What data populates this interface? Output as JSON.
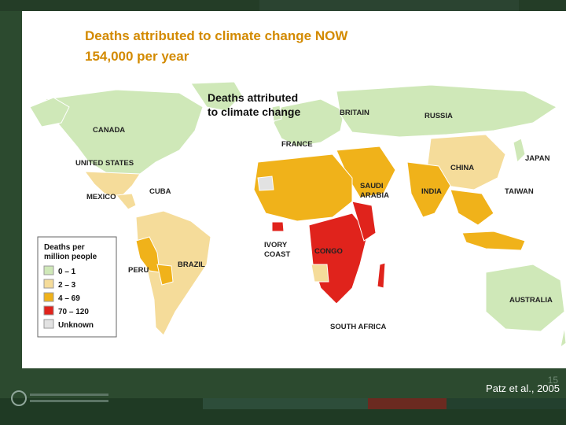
{
  "slide": {
    "title_line1": "Deaths attributed to climate change NOW",
    "title_line2": "154,000 per year",
    "citation": "Patz et al., 2005",
    "page_number": "15"
  },
  "map": {
    "title_line1": "Deaths attributed",
    "title_line2": "to climate change",
    "labels": {
      "canada": "CANADA",
      "united_states": "UNITED STATES",
      "mexico": "MEXICO",
      "cuba": "CUBA",
      "peru": "PERU",
      "brazil": "BRAZIL",
      "britain": "BRITAIN",
      "france": "FRANCE",
      "russia": "RUSSIA",
      "china": "CHINA",
      "japan": "JAPAN",
      "taiwan": "TAIWAN",
      "india": "INDIA",
      "saudi_arabia_1": "SAUDI",
      "saudi_arabia_2": "ARABIA",
      "ivory_coast_1": "IVORY",
      "ivory_coast_2": "COAST",
      "congo": "CONGO",
      "south_africa": "SOUTH AFRICA",
      "australia": "AUSTRALIA"
    },
    "legend": {
      "title_line1": "Deaths per",
      "title_line2": "million people",
      "items": [
        {
          "label": "0 – 1",
          "color": "#cfe8b8"
        },
        {
          "label": "2 – 3",
          "color": "#f5dc9a"
        },
        {
          "label": "4 – 69",
          "color": "#f0b21a"
        },
        {
          "label": "70 – 120",
          "color": "#e0231c"
        },
        {
          "label": "Unknown",
          "color": "#e2e2e2"
        }
      ]
    }
  },
  "colors": {
    "title": "#d38a00",
    "low": "#cfe8b8",
    "mid_low": "#f5dc9a",
    "mid": "#f0b21a",
    "high": "#e0231c",
    "unknown": "#e2e2e2",
    "background": "#2c4a2f"
  }
}
